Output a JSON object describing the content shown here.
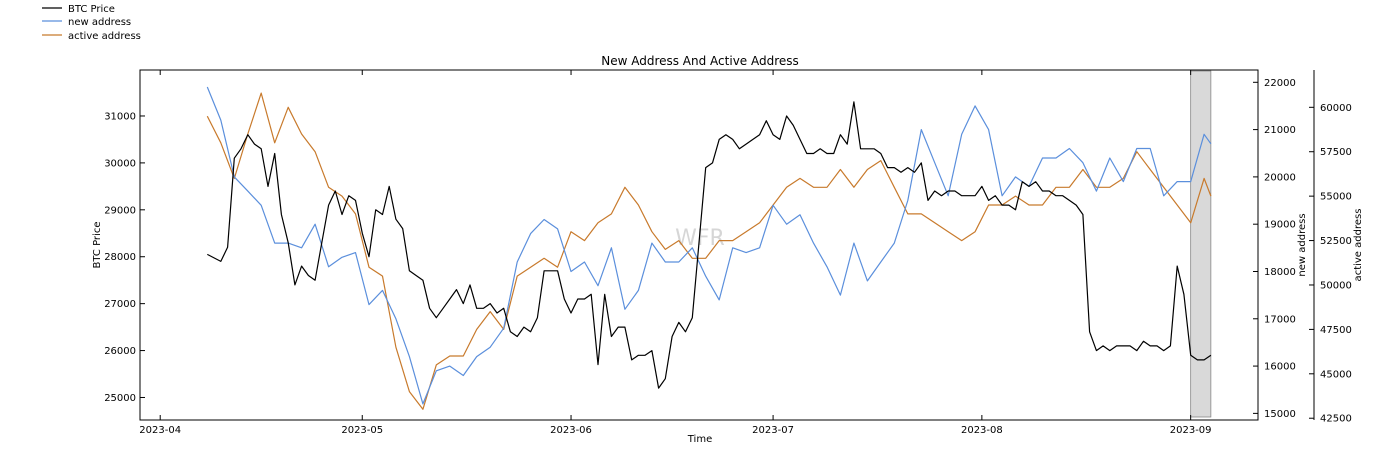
{
  "chart_data": {
    "type": "line",
    "title": "New Address And Active Address",
    "xlabel": "Time",
    "ylabel_left": "BTC Price",
    "ylabel_right1": "new address",
    "ylabel_right2": "active address",
    "watermark": "WFR",
    "legend": [
      {
        "label": "BTC Price",
        "color": "#000000"
      },
      {
        "label": "new address",
        "color": "#5b8fdc"
      },
      {
        "label": "active address",
        "color": "#c87a2c"
      }
    ],
    "x_axis": {
      "range": [
        "2023-03-29",
        "2023-09-11"
      ],
      "ticks": [
        {
          "date": "2023-04-01",
          "label": "2023-04"
        },
        {
          "date": "2023-05-01",
          "label": "2023-05"
        },
        {
          "date": "2023-06-01",
          "label": "2023-06"
        },
        {
          "date": "2023-07-01",
          "label": "2023-07"
        },
        {
          "date": "2023-08-01",
          "label": "2023-08"
        },
        {
          "date": "2023-09-01",
          "label": "2023-09"
        }
      ]
    },
    "y_left": {
      "range": [
        24520,
        31980
      ],
      "ticks": [
        {
          "value": 25000,
          "label": "25000"
        },
        {
          "value": 26000,
          "label": "26000"
        },
        {
          "value": 27000,
          "label": "27000"
        },
        {
          "value": 28000,
          "label": "28000"
        },
        {
          "value": 29000,
          "label": "29000"
        },
        {
          "value": 30000,
          "label": "30000"
        },
        {
          "value": 31000,
          "label": "31000"
        }
      ]
    },
    "y_right1": {
      "range": [
        14860,
        22260
      ],
      "ticks": [
        {
          "value": 15000,
          "label": "15000"
        },
        {
          "value": 16000,
          "label": "16000"
        },
        {
          "value": 17000,
          "label": "17000"
        },
        {
          "value": 18000,
          "label": "18000"
        },
        {
          "value": 19000,
          "label": "19000"
        },
        {
          "value": 20000,
          "label": "20000"
        },
        {
          "value": 21000,
          "label": "21000"
        },
        {
          "value": 22000,
          "label": "22000"
        }
      ]
    },
    "y_right2": {
      "range": [
        42400,
        62100
      ],
      "ticks": [
        {
          "value": 42500,
          "label": "42500"
        },
        {
          "value": 45000,
          "label": "45000"
        },
        {
          "value": 47500,
          "label": "47500"
        },
        {
          "value": 50000,
          "label": "50000"
        },
        {
          "value": 52500,
          "label": "52500"
        },
        {
          "value": 55000,
          "label": "55000"
        },
        {
          "value": 57500,
          "label": "57500"
        },
        {
          "value": 60000,
          "label": "60000"
        }
      ]
    },
    "shaded_region": {
      "start": "2023-09-01",
      "end": "2023-09-04"
    },
    "series": [
      {
        "name": "BTC Price",
        "axis": "left",
        "color": "#000000",
        "x": [
          "2023-04-08",
          "2023-04-10",
          "2023-04-11",
          "2023-04-12",
          "2023-04-13",
          "2023-04-14",
          "2023-04-15",
          "2023-04-16",
          "2023-04-17",
          "2023-04-18",
          "2023-04-19",
          "2023-04-20",
          "2023-04-21",
          "2023-04-22",
          "2023-04-23",
          "2023-04-24",
          "2023-04-25",
          "2023-04-26",
          "2023-04-27",
          "2023-04-28",
          "2023-04-29",
          "2023-04-30",
          "2023-05-01",
          "2023-05-02",
          "2023-05-03",
          "2023-05-04",
          "2023-05-05",
          "2023-05-06",
          "2023-05-07",
          "2023-05-08",
          "2023-05-09",
          "2023-05-10",
          "2023-05-11",
          "2023-05-12",
          "2023-05-13",
          "2023-05-14",
          "2023-05-15",
          "2023-05-16",
          "2023-05-17",
          "2023-05-18",
          "2023-05-19",
          "2023-05-20",
          "2023-05-21",
          "2023-05-22",
          "2023-05-23",
          "2023-05-24",
          "2023-05-25",
          "2023-05-26",
          "2023-05-27",
          "2023-05-28",
          "2023-05-29",
          "2023-05-30",
          "2023-05-31",
          "2023-06-01",
          "2023-06-02",
          "2023-06-03",
          "2023-06-04",
          "2023-06-05",
          "2023-06-06",
          "2023-06-07",
          "2023-06-08",
          "2023-06-09",
          "2023-06-10",
          "2023-06-11",
          "2023-06-12",
          "2023-06-13",
          "2023-06-14",
          "2023-06-15",
          "2023-06-16",
          "2023-06-17",
          "2023-06-18",
          "2023-06-19",
          "2023-06-20",
          "2023-06-21",
          "2023-06-22",
          "2023-06-23",
          "2023-06-24",
          "2023-06-25",
          "2023-06-26",
          "2023-06-27",
          "2023-06-28",
          "2023-06-29",
          "2023-06-30",
          "2023-07-01",
          "2023-07-02",
          "2023-07-03",
          "2023-07-04",
          "2023-07-05",
          "2023-07-06",
          "2023-07-07",
          "2023-07-08",
          "2023-07-09",
          "2023-07-10",
          "2023-07-11",
          "2023-07-12",
          "2023-07-13",
          "2023-07-14",
          "2023-07-15",
          "2023-07-16",
          "2023-07-17",
          "2023-07-18",
          "2023-07-19",
          "2023-07-20",
          "2023-07-21",
          "2023-07-22",
          "2023-07-23",
          "2023-07-24",
          "2023-07-25",
          "2023-07-26",
          "2023-07-27",
          "2023-07-28",
          "2023-07-29",
          "2023-07-30",
          "2023-07-31",
          "2023-08-01",
          "2023-08-02",
          "2023-08-03",
          "2023-08-04",
          "2023-08-05",
          "2023-08-06",
          "2023-08-07",
          "2023-08-08",
          "2023-08-09",
          "2023-08-10",
          "2023-08-11",
          "2023-08-12",
          "2023-08-13",
          "2023-08-14",
          "2023-08-15",
          "2023-08-16",
          "2023-08-17",
          "2023-08-18",
          "2023-08-19",
          "2023-08-20",
          "2023-08-21",
          "2023-08-22",
          "2023-08-23",
          "2023-08-24",
          "2023-08-25",
          "2023-08-26",
          "2023-08-27",
          "2023-08-28",
          "2023-08-29",
          "2023-08-30",
          "2023-08-31",
          "2023-09-01",
          "2023-09-02",
          "2023-09-03",
          "2023-09-04"
        ],
        "values": [
          28050,
          27900,
          28200,
          30100,
          30300,
          30600,
          30400,
          30300,
          29500,
          30200,
          28900,
          28300,
          27400,
          27800,
          27600,
          27500,
          28300,
          29100,
          29400,
          28900,
          29300,
          29200,
          28500,
          28000,
          29000,
          28900,
          29500,
          28800,
          28600,
          27700,
          27600,
          27500,
          26900,
          26700,
          26900,
          27100,
          27300,
          27000,
          27400,
          26900,
          26900,
          27000,
          26800,
          26900,
          26400,
          26300,
          26500,
          26400,
          26700,
          27700,
          27700,
          27700,
          27100,
          26800,
          27100,
          27100,
          27200,
          25700,
          27200,
          26300,
          26500,
          26500,
          25800,
          25900,
          25900,
          26000,
          25200,
          25400,
          26300,
          26600,
          26400,
          26700,
          28300,
          29900,
          30000,
          30500,
          30600,
          30500,
          30300,
          30400,
          30500,
          30600,
          30900,
          30600,
          30500,
          31000,
          30800,
          30500,
          30200,
          30200,
          30300,
          30200,
          30200,
          30600,
          30400,
          31300,
          30300,
          30300,
          30300,
          30200,
          29900,
          29900,
          29800,
          29900,
          29800,
          30000,
          29200,
          29400,
          29300,
          29400,
          29400,
          29300,
          29300,
          29300,
          29500,
          29200,
          29300,
          29100,
          29100,
          29000,
          29600,
          29500,
          29600,
          29400,
          29400,
          29300,
          29300,
          29200,
          29100,
          28900,
          26400,
          26000,
          26100,
          26000,
          26100,
          26100,
          26100,
          26000,
          26200,
          26100,
          26100,
          26000,
          26100,
          27800,
          27200,
          25900,
          25800,
          25800,
          25900
        ]
      },
      {
        "name": "new address",
        "axis": "right1",
        "color": "#5b8fdc",
        "x": [
          "2023-04-08",
          "2023-04-10",
          "2023-04-12",
          "2023-04-14",
          "2023-04-16",
          "2023-04-18",
          "2023-04-20",
          "2023-04-22",
          "2023-04-24",
          "2023-04-26",
          "2023-04-28",
          "2023-04-30",
          "2023-05-02",
          "2023-05-04",
          "2023-05-06",
          "2023-05-08",
          "2023-05-10",
          "2023-05-12",
          "2023-05-14",
          "2023-05-16",
          "2023-05-18",
          "2023-05-20",
          "2023-05-22",
          "2023-05-24",
          "2023-05-26",
          "2023-05-28",
          "2023-05-30",
          "2023-06-01",
          "2023-06-03",
          "2023-06-05",
          "2023-06-07",
          "2023-06-09",
          "2023-06-11",
          "2023-06-13",
          "2023-06-15",
          "2023-06-17",
          "2023-06-19",
          "2023-06-21",
          "2023-06-23",
          "2023-06-25",
          "2023-06-27",
          "2023-06-29",
          "2023-07-01",
          "2023-07-03",
          "2023-07-05",
          "2023-07-07",
          "2023-07-09",
          "2023-07-11",
          "2023-07-13",
          "2023-07-15",
          "2023-07-17",
          "2023-07-19",
          "2023-07-21",
          "2023-07-23",
          "2023-07-25",
          "2023-07-27",
          "2023-07-29",
          "2023-07-31",
          "2023-08-02",
          "2023-08-04",
          "2023-08-06",
          "2023-08-08",
          "2023-08-10",
          "2023-08-12",
          "2023-08-14",
          "2023-08-16",
          "2023-08-18",
          "2023-08-20",
          "2023-08-22",
          "2023-08-24",
          "2023-08-26",
          "2023-08-28",
          "2023-08-30",
          "2023-09-01",
          "2023-09-03",
          "2023-09-04"
        ],
        "values": [
          21900,
          21200,
          20000,
          19700,
          19400,
          18600,
          18600,
          18500,
          19000,
          18100,
          18300,
          18400,
          17300,
          17600,
          17000,
          16200,
          15200,
          15900,
          16000,
          15800,
          16200,
          16400,
          16800,
          18200,
          18800,
          19100,
          18900,
          18000,
          18200,
          17700,
          18500,
          17200,
          17600,
          18600,
          18200,
          18200,
          18500,
          17900,
          17400,
          18500,
          18400,
          18500,
          19400,
          19000,
          19200,
          18600,
          18100,
          17500,
          18600,
          17800,
          18200,
          18600,
          19500,
          21000,
          20300,
          19600,
          20900,
          21500,
          21000,
          19600,
          20000,
          19800,
          20400,
          20400,
          20600,
          20300,
          19700,
          20400,
          19900,
          20600,
          20600,
          19600,
          19900,
          19900,
          20900,
          20700
        ]
      },
      {
        "name": "active address",
        "axis": "right2",
        "color": "#c87a2c",
        "x": [
          "2023-04-08",
          "2023-04-10",
          "2023-04-12",
          "2023-04-14",
          "2023-04-16",
          "2023-04-18",
          "2023-04-20",
          "2023-04-22",
          "2023-04-24",
          "2023-04-26",
          "2023-04-28",
          "2023-04-30",
          "2023-05-02",
          "2023-05-04",
          "2023-05-06",
          "2023-05-08",
          "2023-05-10",
          "2023-05-12",
          "2023-05-14",
          "2023-05-16",
          "2023-05-18",
          "2023-05-20",
          "2023-05-22",
          "2023-05-24",
          "2023-05-26",
          "2023-05-28",
          "2023-05-30",
          "2023-06-01",
          "2023-06-03",
          "2023-06-05",
          "2023-06-07",
          "2023-06-09",
          "2023-06-11",
          "2023-06-13",
          "2023-06-15",
          "2023-06-17",
          "2023-06-19",
          "2023-06-21",
          "2023-06-23",
          "2023-06-25",
          "2023-06-27",
          "2023-06-29",
          "2023-07-01",
          "2023-07-03",
          "2023-07-05",
          "2023-07-07",
          "2023-07-09",
          "2023-07-11",
          "2023-07-13",
          "2023-07-15",
          "2023-07-17",
          "2023-07-19",
          "2023-07-21",
          "2023-07-23",
          "2023-07-25",
          "2023-07-27",
          "2023-07-29",
          "2023-07-31",
          "2023-08-02",
          "2023-08-04",
          "2023-08-06",
          "2023-08-08",
          "2023-08-10",
          "2023-08-12",
          "2023-08-14",
          "2023-08-16",
          "2023-08-18",
          "2023-08-20",
          "2023-08-22",
          "2023-08-24",
          "2023-08-26",
          "2023-08-28",
          "2023-08-30",
          "2023-09-01",
          "2023-09-03",
          "2023-09-04"
        ],
        "values": [
          59500,
          58000,
          56000,
          58500,
          60800,
          58000,
          60000,
          58500,
          57500,
          55500,
          55000,
          54000,
          51000,
          50500,
          46500,
          44000,
          43000,
          45500,
          46000,
          46000,
          47500,
          48500,
          47500,
          50500,
          51000,
          51500,
          51000,
          53000,
          52500,
          53500,
          54000,
          55500,
          54500,
          53000,
          52000,
          52500,
          51500,
          51500,
          52500,
          52500,
          53000,
          53500,
          54500,
          55500,
          56000,
          55500,
          55500,
          56500,
          55500,
          56500,
          57000,
          55500,
          54000,
          54000,
          53500,
          53000,
          52500,
          53000,
          54500,
          54500,
          55000,
          54500,
          54500,
          55500,
          55500,
          56500,
          55500,
          55500,
          56000,
          57500,
          56500,
          55500,
          54500,
          53500,
          56000,
          55000
        ]
      }
    ]
  }
}
